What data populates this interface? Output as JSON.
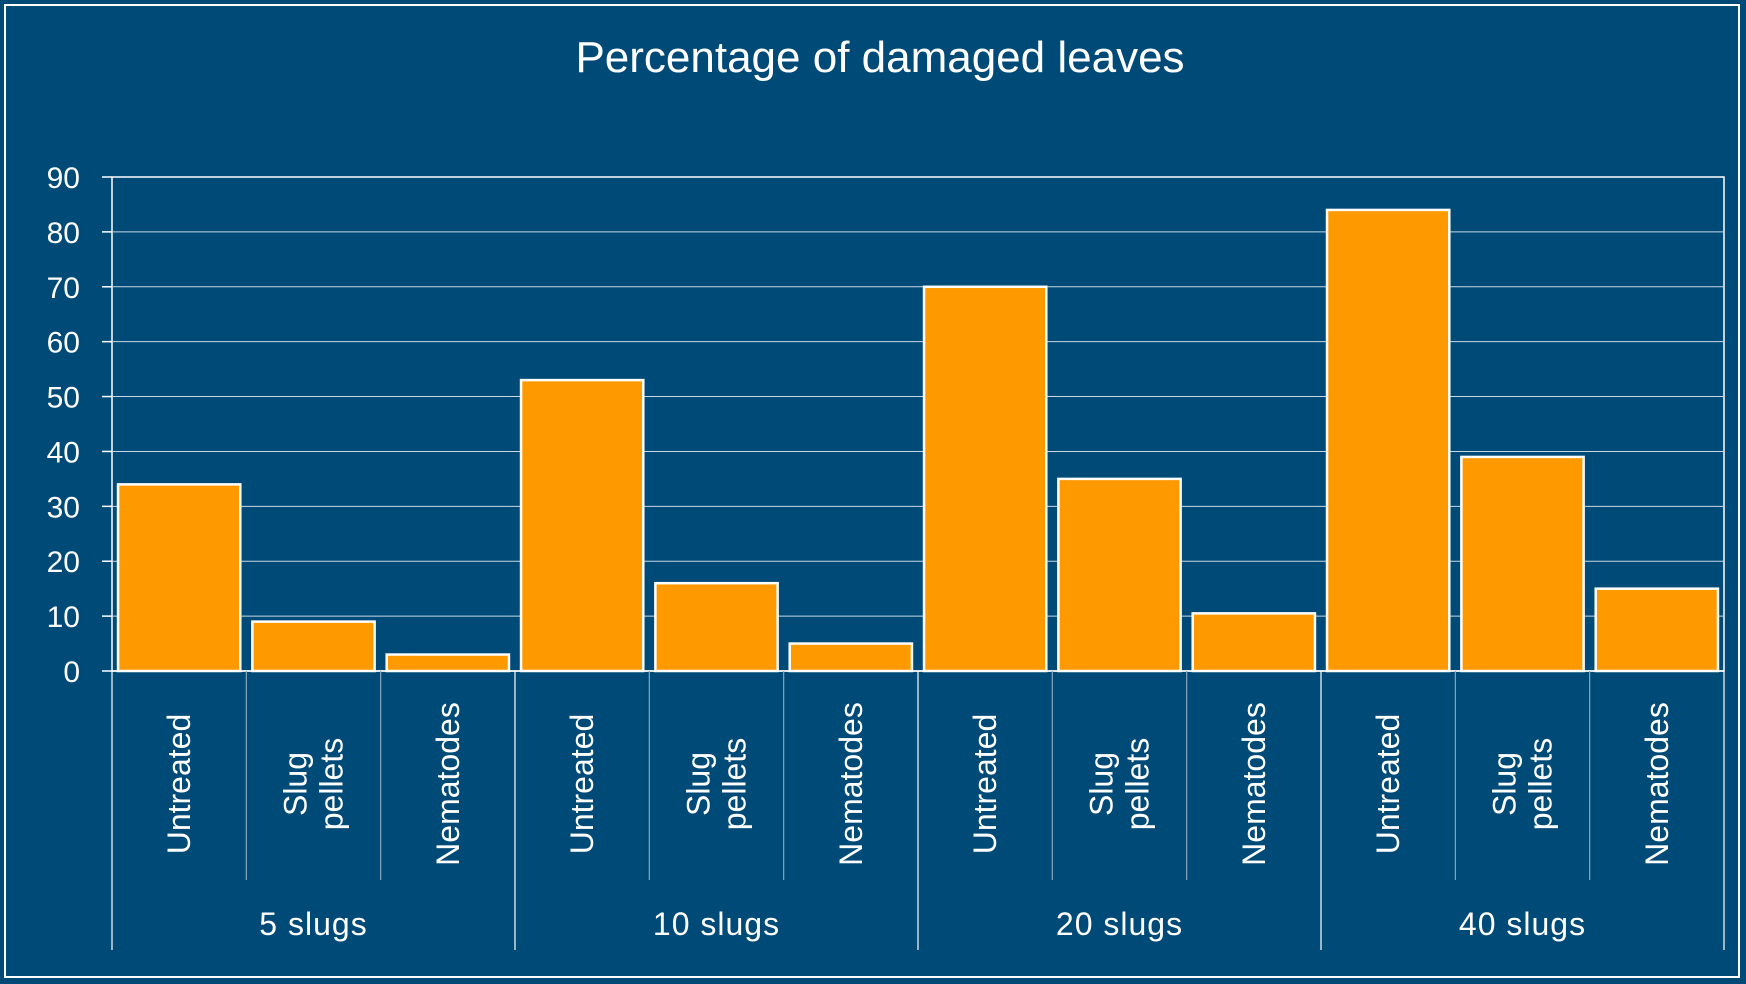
{
  "chart_data": {
    "type": "bar",
    "title": "Percentage of damaged leaves",
    "xlabel": "",
    "ylabel": "",
    "ylim": [
      0,
      90
    ],
    "yticks": [
      0,
      10,
      20,
      30,
      40,
      50,
      60,
      70,
      80,
      90
    ],
    "grid": true,
    "legend": "none",
    "groups": [
      {
        "label": "5 slugs",
        "categories": [
          {
            "label": "Untreated",
            "lines": [
              "Untreated"
            ],
            "value": 34
          },
          {
            "label": "Slug pellets",
            "lines": [
              "Slug",
              "pellets"
            ],
            "value": 9
          },
          {
            "label": "Nematodes",
            "lines": [
              "Nematodes"
            ],
            "value": 3
          }
        ]
      },
      {
        "label": "10 slugs",
        "categories": [
          {
            "label": "Untreated",
            "lines": [
              "Untreated"
            ],
            "value": 53
          },
          {
            "label": "Slug pellets",
            "lines": [
              "Slug",
              "pellets"
            ],
            "value": 16
          },
          {
            "label": "Nematodes",
            "lines": [
              "Nematodes"
            ],
            "value": 5
          }
        ]
      },
      {
        "label": "20 slugs",
        "categories": [
          {
            "label": "Untreated",
            "lines": [
              "Untreated"
            ],
            "value": 70
          },
          {
            "label": "Slug pellets",
            "lines": [
              "Slug",
              "pellets"
            ],
            "value": 35
          },
          {
            "label": "Nematodes",
            "lines": [
              "Nematodes"
            ],
            "value": 10.5
          }
        ]
      },
      {
        "label": "40 slugs",
        "categories": [
          {
            "label": "Untreated",
            "lines": [
              "Untreated"
            ],
            "value": 84
          },
          {
            "label": "Slug pellets",
            "lines": [
              "Slug",
              "pellets"
            ],
            "value": 39
          },
          {
            "label": "Nematodes",
            "lines": [
              "Nematodes"
            ],
            "value": 15
          }
        ]
      }
    ],
    "colors": {
      "background": "#004a78",
      "bar_fill": "#ff9900",
      "bar_stroke": "#ffffff",
      "axis": "#ffffff",
      "grid": "#c8d7e3",
      "text": "#ffffff"
    }
  }
}
